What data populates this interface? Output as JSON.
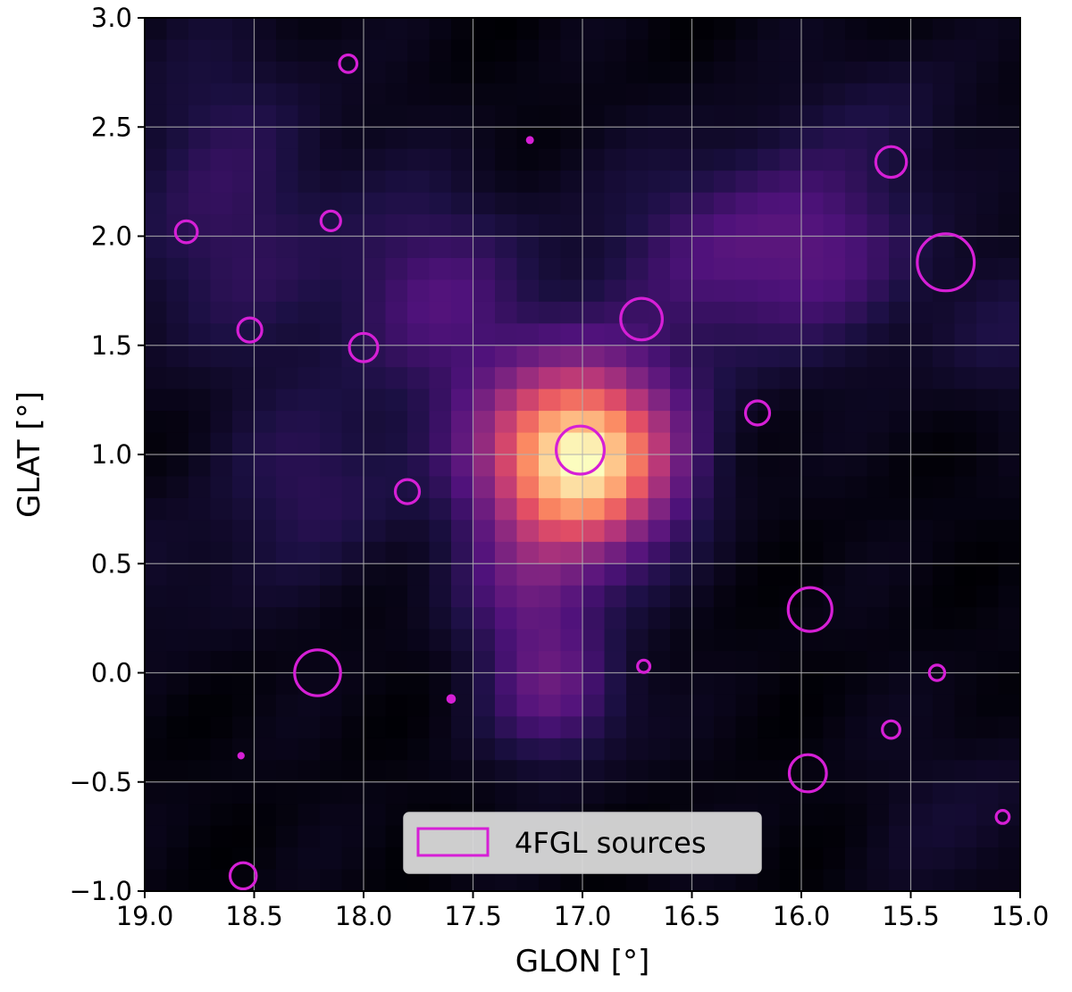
{
  "chart_data": {
    "type": "heatmap",
    "title": "",
    "xlabel": "GLON [°]",
    "ylabel": "GLAT [°]",
    "xlim": [
      19.0,
      15.0
    ],
    "ylim": [
      -1.0,
      3.0
    ],
    "x_inverted": true,
    "x_ticks": [
      19.0,
      18.5,
      18.0,
      17.5,
      17.0,
      16.5,
      16.0,
      15.5,
      15.0
    ],
    "x_tick_labels": [
      "19.0",
      "18.5",
      "18.0",
      "17.5",
      "17.0",
      "16.5",
      "16.0",
      "15.5",
      "15.0"
    ],
    "y_ticks": [
      3.0,
      2.5,
      2.0,
      1.5,
      1.0,
      0.5,
      0.0,
      -0.5,
      -1.0
    ],
    "y_tick_labels": [
      "3.0",
      "2.5",
      "2.0",
      "1.5",
      "1.0",
      "0.5",
      "0.0",
      "−0.5",
      "−1.0"
    ],
    "grid": true,
    "colormap": "magma",
    "heatmap_blobs": [
      {
        "glon": 17.02,
        "glat": 0.98,
        "sigma": 0.3,
        "amp": 1.0
      },
      {
        "glon": 17.12,
        "glat": -0.1,
        "sigma": 0.22,
        "amp": 0.26
      },
      {
        "glon": 17.25,
        "glat": 0.35,
        "sigma": 0.22,
        "amp": 0.2
      },
      {
        "glon": 17.65,
        "glat": 1.72,
        "sigma": 0.35,
        "amp": 0.2
      },
      {
        "glon": 16.35,
        "glat": 1.9,
        "sigma": 0.35,
        "amp": 0.22
      },
      {
        "glon": 15.8,
        "glat": 1.95,
        "sigma": 0.3,
        "amp": 0.15
      },
      {
        "glon": 18.65,
        "glat": 1.95,
        "sigma": 0.4,
        "amp": 0.13
      },
      {
        "glon": 18.2,
        "glat": 0.85,
        "sigma": 0.3,
        "amp": 0.14
      },
      {
        "glon": 18.6,
        "glat": 2.6,
        "sigma": 0.35,
        "amp": 0.07
      },
      {
        "glon": 15.6,
        "glat": 2.55,
        "sigma": 0.25,
        "amp": 0.08
      },
      {
        "glon": 15.1,
        "glat": 1.55,
        "sigma": 0.25,
        "amp": 0.09
      },
      {
        "glon": 15.2,
        "glat": -0.65,
        "sigma": 0.3,
        "amp": 0.06
      },
      {
        "glon": 18.9,
        "glat": 0.45,
        "sigma": 0.25,
        "amp": 0.06
      }
    ],
    "sources": [
      {
        "glon": 18.07,
        "glat": 2.79,
        "radius": 0.04
      },
      {
        "glon": 17.24,
        "glat": 2.44,
        "radius": 0.012
      },
      {
        "glon": 15.59,
        "glat": 2.34,
        "radius": 0.07
      },
      {
        "glon": 18.81,
        "glat": 2.02,
        "radius": 0.05
      },
      {
        "glon": 18.15,
        "glat": 2.07,
        "radius": 0.045
      },
      {
        "glon": 15.34,
        "glat": 1.88,
        "radius": 0.13
      },
      {
        "glon": 16.73,
        "glat": 1.62,
        "radius": 0.095
      },
      {
        "glon": 18.52,
        "glat": 1.57,
        "radius": 0.055
      },
      {
        "glon": 18.0,
        "glat": 1.49,
        "radius": 0.065
      },
      {
        "glon": 16.2,
        "glat": 1.19,
        "radius": 0.055
      },
      {
        "glon": 17.01,
        "glat": 1.02,
        "radius": 0.11
      },
      {
        "glon": 17.8,
        "glat": 0.83,
        "radius": 0.055
      },
      {
        "glon": 15.96,
        "glat": 0.29,
        "radius": 0.1
      },
      {
        "glon": 18.21,
        "glat": 0.0,
        "radius": 0.105
      },
      {
        "glon": 16.72,
        "glat": 0.03,
        "radius": 0.028
      },
      {
        "glon": 15.38,
        "glat": 0.0,
        "radius": 0.035
      },
      {
        "glon": 17.6,
        "glat": -0.12,
        "radius": 0.015
      },
      {
        "glon": 15.59,
        "glat": -0.26,
        "radius": 0.04
      },
      {
        "glon": 18.56,
        "glat": -0.38,
        "radius": 0.01
      },
      {
        "glon": 15.97,
        "glat": -0.46,
        "radius": 0.085
      },
      {
        "glon": 15.08,
        "glat": -0.66,
        "radius": 0.03
      },
      {
        "glon": 18.55,
        "glat": -0.93,
        "radius": 0.06
      }
    ],
    "source_color": "#d61fd6",
    "legend": {
      "position": "bottom-center",
      "entries": [
        {
          "label": "4FGL sources",
          "color": "#d61fd6"
        }
      ],
      "box_color": "#d9d9d9"
    }
  }
}
